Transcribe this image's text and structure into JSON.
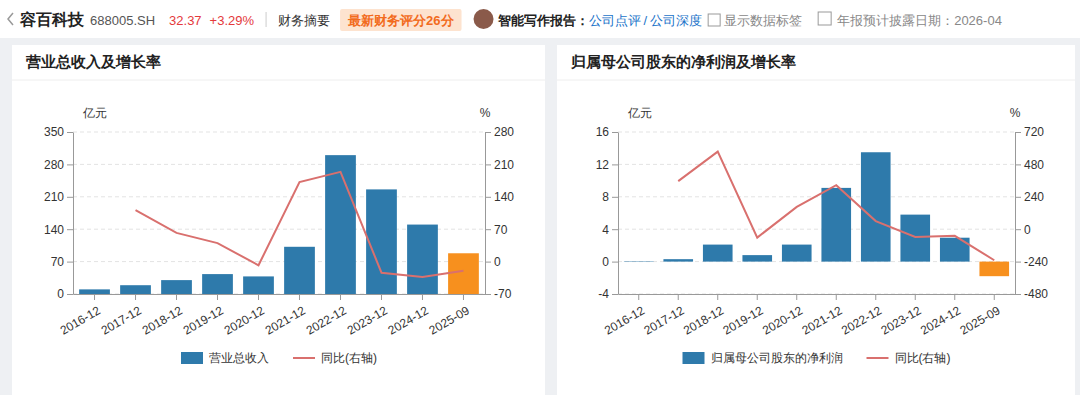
{
  "header": {
    "name": "容百科技",
    "code": "688005.SH",
    "price": "32.37",
    "change": "+3.29%",
    "summary": "财务摘要",
    "score": "最新财务评分26分",
    "ai_label": "智能写作报告：",
    "link1": "公司点评",
    "sep": "/",
    "link2": "公司深度",
    "checkbox": "显示数据标签",
    "disclosure": "年报预计披露日期：2026-04"
  },
  "chart_data": [
    {
      "type": "bar",
      "title": "营业总收入及增长率",
      "ylabel": "亿元",
      "y2label": "%",
      "categories": [
        "2016-12",
        "2017-12",
        "2018-12",
        "2019-12",
        "2020-12",
        "2021-12",
        "2022-12",
        "2023-12",
        "2024-12",
        "2025-09"
      ],
      "ylim": [
        0,
        350
      ],
      "yticks": [
        0,
        70,
        140,
        210,
        280,
        350
      ],
      "y2lim": [
        -70,
        280
      ],
      "y2ticks": [
        -70,
        0,
        70,
        140,
        210,
        280
      ],
      "grid": true,
      "legend": "bottom",
      "series": [
        {
          "name": "营业总收入",
          "type": "bar",
          "color": "#2e7aab",
          "colors": [
            "#2e7aab",
            "#2e7aab",
            "#2e7aab",
            "#2e7aab",
            "#2e7aab",
            "#2e7aab",
            "#2e7aab",
            "#2e7aab",
            "#2e7aab",
            "#f7901e"
          ],
          "values": [
            10,
            19,
            30,
            43,
            38,
            102,
            300,
            226,
            150,
            88
          ]
        },
        {
          "name": "同比(右轴)",
          "type": "line",
          "axis": "y2",
          "color": "#d9706e",
          "values": [
            null,
            111,
            62,
            40,
            -8,
            172,
            194,
            -24,
            -33,
            -20
          ]
        }
      ]
    },
    {
      "type": "bar",
      "title": "归属母公司股东的净利润及增长率",
      "ylabel": "亿元",
      "y2label": "%",
      "categories": [
        "2016-12",
        "2017-12",
        "2018-12",
        "2019-12",
        "2020-12",
        "2021-12",
        "2022-12",
        "2023-12",
        "2024-12",
        "2025-09"
      ],
      "ylim": [
        -4,
        16
      ],
      "yticks": [
        -4,
        0,
        4,
        8,
        12,
        16
      ],
      "y2lim": [
        -480,
        720
      ],
      "y2ticks": [
        -480,
        -240,
        0,
        240,
        480,
        720
      ],
      "grid": true,
      "legend": "bottom",
      "series": [
        {
          "name": "归属母公司股东的净利润",
          "type": "bar",
          "color": "#2e7aab",
          "colors": [
            "#2e7aab",
            "#2e7aab",
            "#2e7aab",
            "#2e7aab",
            "#2e7aab",
            "#2e7aab",
            "#2e7aab",
            "#2e7aab",
            "#2e7aab",
            "#f7901e"
          ],
          "values": [
            0.05,
            0.3,
            2.1,
            0.8,
            2.1,
            9.1,
            13.5,
            5.8,
            2.95,
            -1.8
          ]
        },
        {
          "name": "同比(右轴)",
          "type": "line",
          "axis": "y2",
          "color": "#d9706e",
          "values": [
            null,
            356,
            575,
            -62,
            165,
            326,
            60,
            -57,
            -49,
            -230
          ]
        }
      ]
    }
  ]
}
